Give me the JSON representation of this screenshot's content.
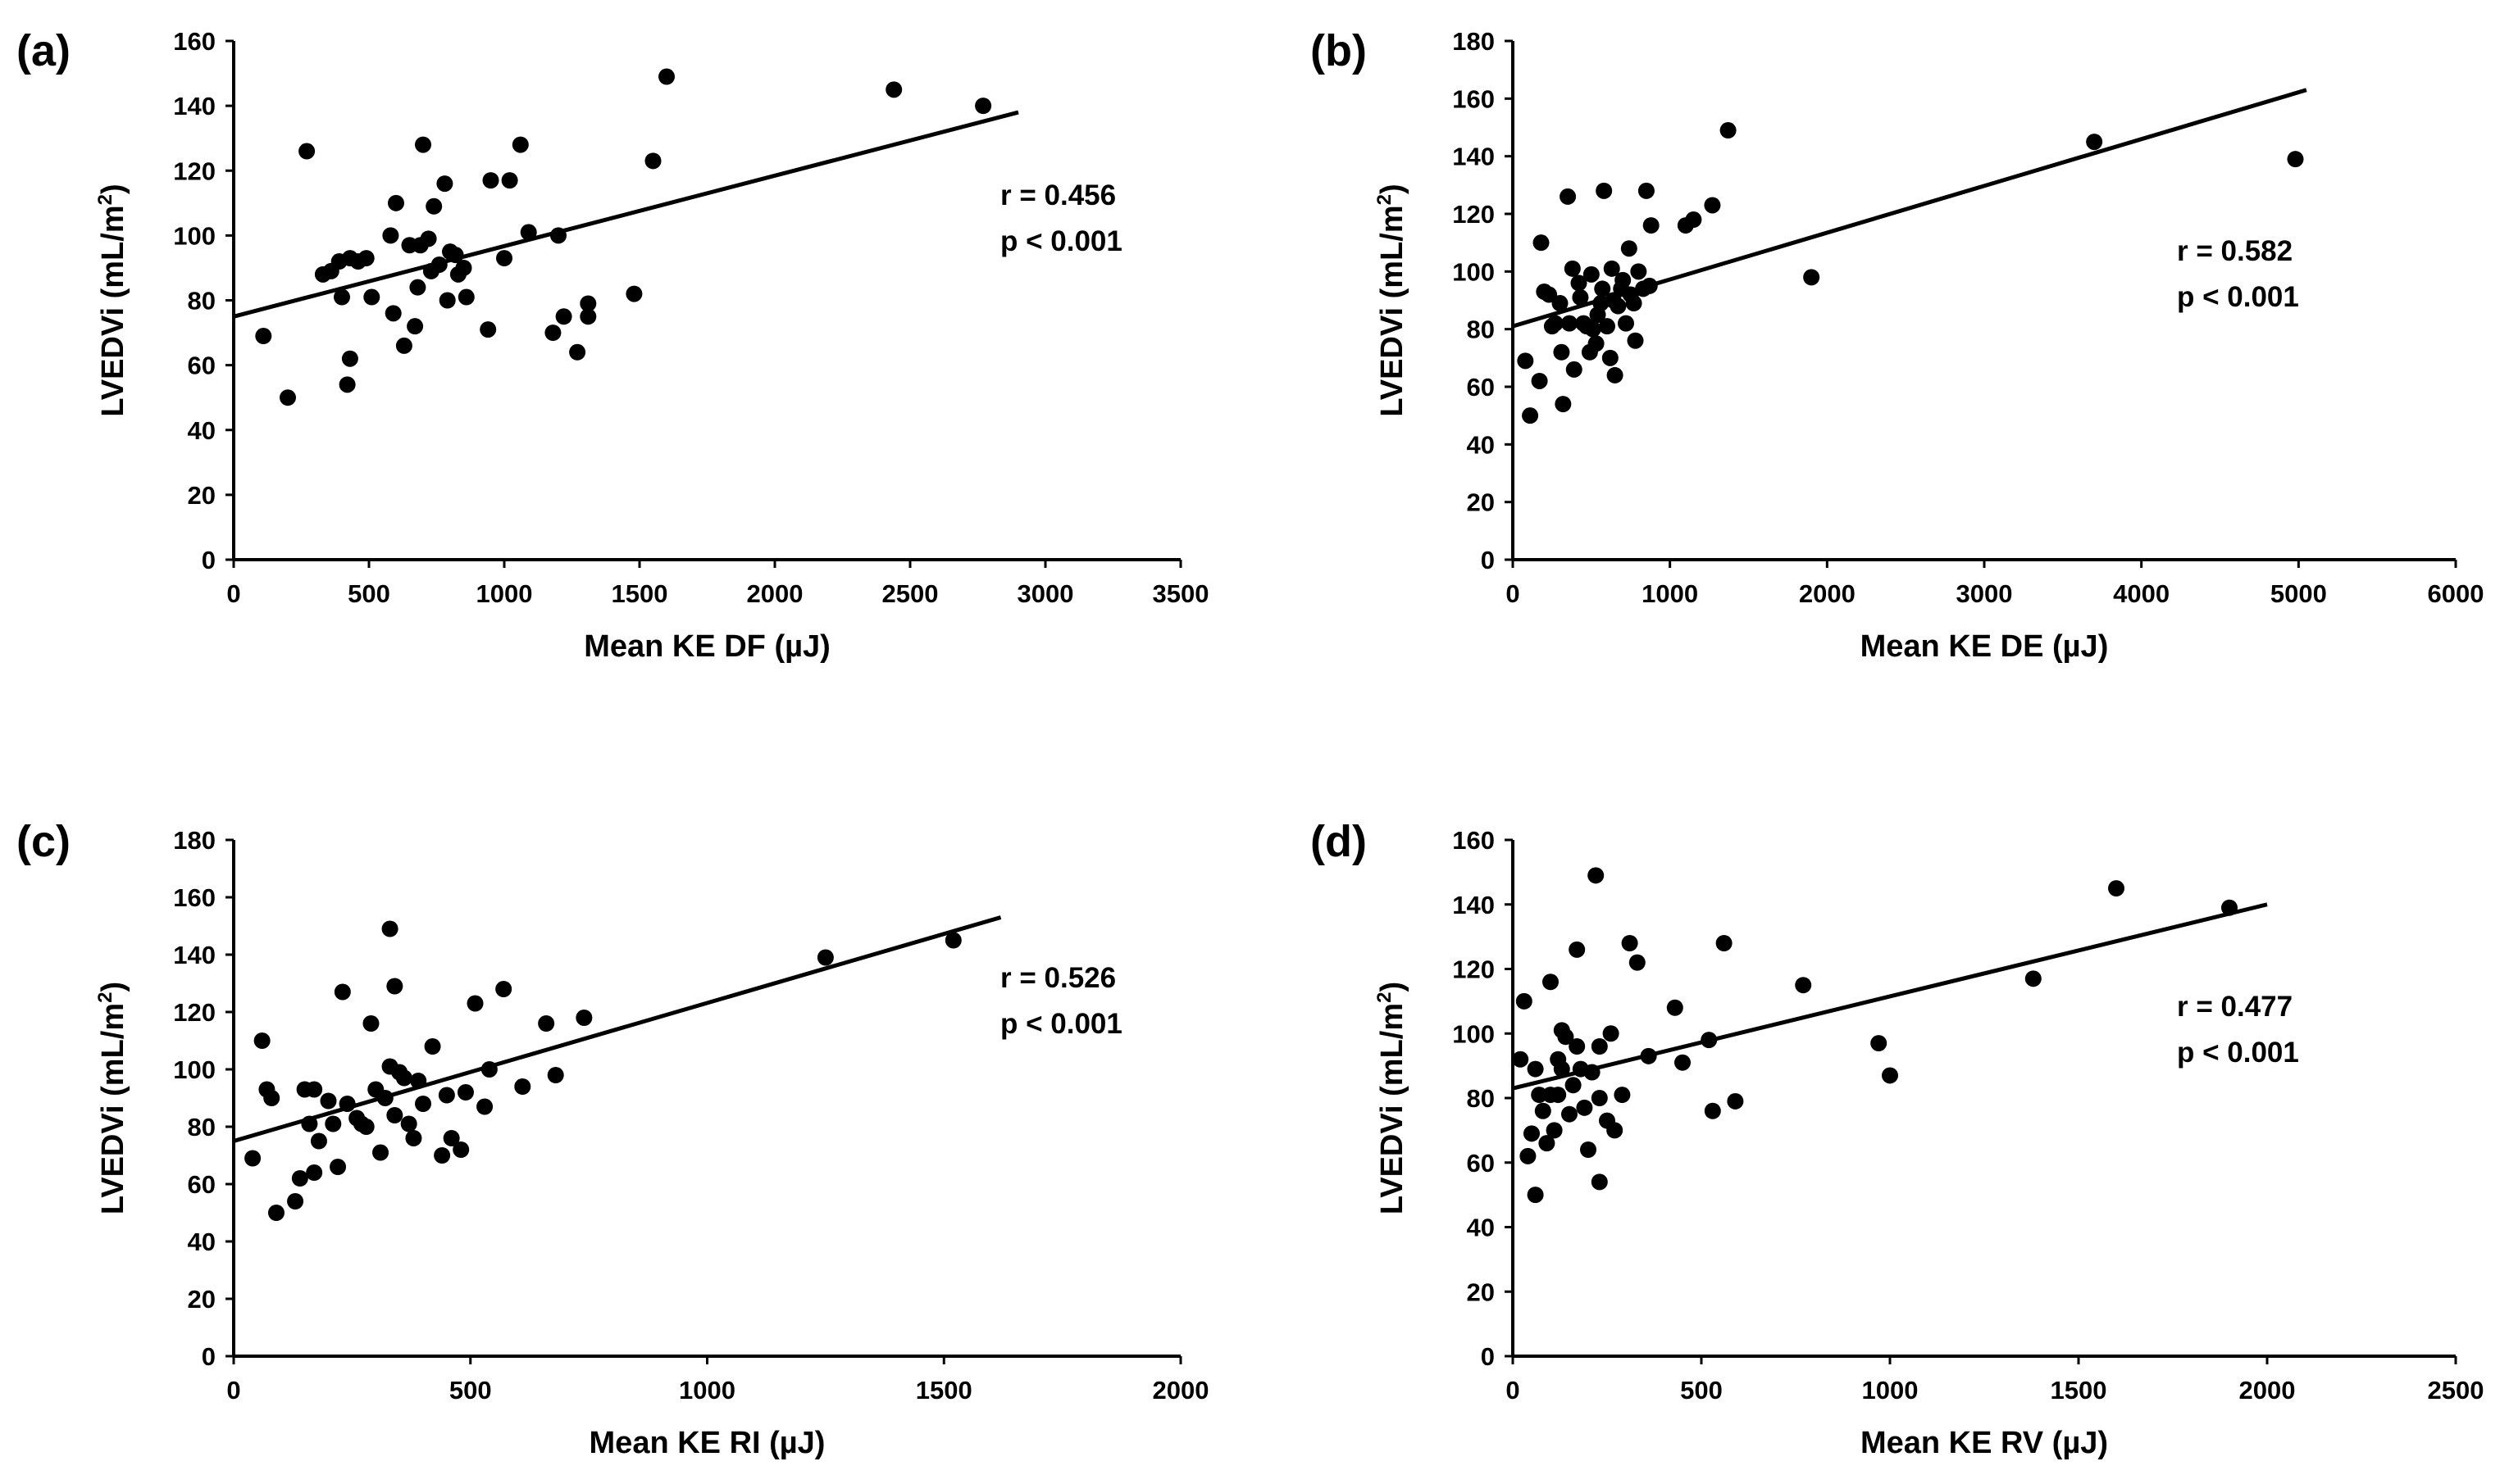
{
  "colors": {
    "marker": "#000000",
    "axis": "#000000",
    "background": "#ffffff"
  },
  "chart_data": [
    {
      "type": "scatter",
      "panel_label": "(a)",
      "xlabel": "Mean KE DF (µJ)",
      "ylabel_main": "LVEDVi (mL/m",
      "ylabel_sup": "2",
      "ylabel_end": ")",
      "xlim": [
        0,
        3500
      ],
      "ylim": [
        0,
        160
      ],
      "xticks": [
        0,
        500,
        1000,
        1500,
        2000,
        2500,
        3000,
        3500
      ],
      "yticks": [
        0,
        20,
        40,
        60,
        80,
        100,
        120,
        140,
        160
      ],
      "stats": {
        "r": "r = 0.456",
        "p": "p < 0.001"
      },
      "trendline": {
        "x1": 0,
        "y1": 75,
        "x2": 2900,
        "y2": 138
      },
      "points": [
        [
          110,
          69
        ],
        [
          200,
          50
        ],
        [
          270,
          126
        ],
        [
          330,
          88
        ],
        [
          360,
          89
        ],
        [
          400,
          81
        ],
        [
          390,
          92
        ],
        [
          420,
          54
        ],
        [
          430,
          62
        ],
        [
          430,
          93
        ],
        [
          460,
          92
        ],
        [
          490,
          93
        ],
        [
          510,
          81
        ],
        [
          580,
          100
        ],
        [
          590,
          76
        ],
        [
          600,
          110
        ],
        [
          630,
          66
        ],
        [
          650,
          97
        ],
        [
          670,
          72
        ],
        [
          680,
          84
        ],
        [
          690,
          97
        ],
        [
          700,
          128
        ],
        [
          720,
          99
        ],
        [
          730,
          89
        ],
        [
          740,
          109
        ],
        [
          760,
          91
        ],
        [
          780,
          116
        ],
        [
          790,
          80
        ],
        [
          800,
          95
        ],
        [
          820,
          94
        ],
        [
          830,
          88
        ],
        [
          850,
          90
        ],
        [
          860,
          81
        ],
        [
          940,
          71
        ],
        [
          950,
          117
        ],
        [
          1000,
          93
        ],
        [
          1020,
          117
        ],
        [
          1060,
          128
        ],
        [
          1090,
          101
        ],
        [
          1180,
          70
        ],
        [
          1200,
          100
        ],
        [
          1220,
          75
        ],
        [
          1270,
          64
        ],
        [
          1310,
          79
        ],
        [
          1310,
          75
        ],
        [
          1480,
          82
        ],
        [
          1550,
          123
        ],
        [
          1600,
          149
        ],
        [
          2440,
          145
        ],
        [
          2770,
          140
        ]
      ]
    },
    {
      "type": "scatter",
      "panel_label": "(b)",
      "xlabel": "Mean KE DE (µJ)",
      "ylabel_main": "LVEDVi (mL/m",
      "ylabel_sup": "2",
      "ylabel_end": ")",
      "xlim": [
        0,
        6000
      ],
      "ylim": [
        0,
        180
      ],
      "xticks": [
        0,
        1000,
        2000,
        3000,
        4000,
        5000,
        6000
      ],
      "yticks": [
        0,
        20,
        40,
        60,
        80,
        100,
        120,
        140,
        160,
        180
      ],
      "stats": {
        "r": "r = 0.582",
        "p": "p < 0.001"
      },
      "trendline": {
        "x1": 0,
        "y1": 81,
        "x2": 5050,
        "y2": 163
      },
      "points": [
        [
          80,
          69
        ],
        [
          110,
          50
        ],
        [
          170,
          62
        ],
        [
          180,
          110
        ],
        [
          200,
          93
        ],
        [
          230,
          92
        ],
        [
          250,
          81
        ],
        [
          270,
          82
        ],
        [
          300,
          89
        ],
        [
          310,
          72
        ],
        [
          320,
          54
        ],
        [
          350,
          126
        ],
        [
          360,
          82
        ],
        [
          380,
          101
        ],
        [
          390,
          66
        ],
        [
          420,
          96
        ],
        [
          430,
          91
        ],
        [
          450,
          82
        ],
        [
          470,
          81
        ],
        [
          490,
          72
        ],
        [
          500,
          99
        ],
        [
          510,
          80
        ],
        [
          530,
          75
        ],
        [
          540,
          85
        ],
        [
          560,
          89
        ],
        [
          570,
          94
        ],
        [
          580,
          128
        ],
        [
          600,
          81
        ],
        [
          620,
          70
        ],
        [
          630,
          101
        ],
        [
          640,
          90
        ],
        [
          650,
          64
        ],
        [
          670,
          88
        ],
        [
          690,
          94
        ],
        [
          700,
          97
        ],
        [
          720,
          82
        ],
        [
          740,
          108
        ],
        [
          750,
          92
        ],
        [
          770,
          89
        ],
        [
          780,
          76
        ],
        [
          800,
          100
        ],
        [
          830,
          94
        ],
        [
          850,
          128
        ],
        [
          870,
          95
        ],
        [
          880,
          116
        ],
        [
          1100,
          116
        ],
        [
          1150,
          118
        ],
        [
          1270,
          123
        ],
        [
          1370,
          149
        ],
        [
          1900,
          98
        ],
        [
          3700,
          145
        ],
        [
          4980,
          139
        ]
      ]
    },
    {
      "type": "scatter",
      "panel_label": "(c)",
      "xlabel": "Mean KE RI (µJ)",
      "ylabel_main": "LVEDVi (mL/m",
      "ylabel_sup": "2",
      "ylabel_end": ")",
      "xlim": [
        0,
        2000
      ],
      "ylim": [
        0,
        180
      ],
      "xticks": [
        0,
        500,
        1000,
        1500,
        2000
      ],
      "yticks": [
        0,
        20,
        40,
        60,
        80,
        100,
        120,
        140,
        160,
        180
      ],
      "stats": {
        "r": "r = 0.526",
        "p": "p < 0.001"
      },
      "trendline": {
        "x1": 0,
        "y1": 75,
        "x2": 1620,
        "y2": 153
      },
      "points": [
        [
          40,
          69
        ],
        [
          60,
          110
        ],
        [
          70,
          93
        ],
        [
          80,
          90
        ],
        [
          90,
          50
        ],
        [
          130,
          54
        ],
        [
          140,
          62
        ],
        [
          150,
          93
        ],
        [
          160,
          81
        ],
        [
          170,
          64
        ],
        [
          170,
          93
        ],
        [
          180,
          75
        ],
        [
          200,
          89
        ],
        [
          210,
          81
        ],
        [
          220,
          66
        ],
        [
          230,
          127
        ],
        [
          240,
          88
        ],
        [
          260,
          83
        ],
        [
          270,
          81
        ],
        [
          280,
          80
        ],
        [
          290,
          116
        ],
        [
          300,
          93
        ],
        [
          310,
          71
        ],
        [
          320,
          90
        ],
        [
          330,
          101
        ],
        [
          330,
          149
        ],
        [
          340,
          84
        ],
        [
          340,
          129
        ],
        [
          350,
          99
        ],
        [
          360,
          97
        ],
        [
          370,
          81
        ],
        [
          380,
          76
        ],
        [
          390,
          96
        ],
        [
          400,
          88
        ],
        [
          420,
          108
        ],
        [
          440,
          70
        ],
        [
          450,
          91
        ],
        [
          460,
          76
        ],
        [
          480,
          72
        ],
        [
          490,
          92
        ],
        [
          510,
          123
        ],
        [
          530,
          87
        ],
        [
          540,
          100
        ],
        [
          570,
          128
        ],
        [
          610,
          94
        ],
        [
          660,
          116
        ],
        [
          680,
          98
        ],
        [
          740,
          118
        ],
        [
          1250,
          139
        ],
        [
          1520,
          145
        ]
      ]
    },
    {
      "type": "scatter",
      "panel_label": "(d)",
      "xlabel": "Mean KE RV (µJ)",
      "ylabel_main": "LVEDVi (mL/m",
      "ylabel_sup": "2",
      "ylabel_end": ")",
      "xlim": [
        0,
        2500
      ],
      "ylim": [
        0,
        160
      ],
      "xticks": [
        0,
        500,
        1000,
        1500,
        2000,
        2500
      ],
      "yticks": [
        0,
        20,
        40,
        60,
        80,
        100,
        120,
        140,
        160
      ],
      "stats": {
        "r": "r = 0.477",
        "p": "p < 0.001"
      },
      "trendline": {
        "x1": 0,
        "y1": 83,
        "x2": 2000,
        "y2": 140
      },
      "points": [
        [
          20,
          92
        ],
        [
          30,
          110
        ],
        [
          40,
          62
        ],
        [
          50,
          69
        ],
        [
          60,
          89
        ],
        [
          60,
          50
        ],
        [
          70,
          81
        ],
        [
          80,
          76
        ],
        [
          90,
          66
        ],
        [
          100,
          116
        ],
        [
          100,
          81
        ],
        [
          110,
          70
        ],
        [
          120,
          92
        ],
        [
          120,
          81
        ],
        [
          130,
          101
        ],
        [
          130,
          89
        ],
        [
          140,
          99
        ],
        [
          150,
          75
        ],
        [
          160,
          84
        ],
        [
          170,
          126
        ],
        [
          170,
          96
        ],
        [
          180,
          89
        ],
        [
          190,
          77
        ],
        [
          200,
          64
        ],
        [
          210,
          88
        ],
        [
          220,
          149
        ],
        [
          230,
          96
        ],
        [
          230,
          80
        ],
        [
          230,
          54
        ],
        [
          250,
          73
        ],
        [
          260,
          100
        ],
        [
          270,
          70
        ],
        [
          290,
          81
        ],
        [
          310,
          128
        ],
        [
          330,
          122
        ],
        [
          360,
          93
        ],
        [
          430,
          108
        ],
        [
          450,
          91
        ],
        [
          520,
          98
        ],
        [
          530,
          76
        ],
        [
          560,
          128
        ],
        [
          590,
          79
        ],
        [
          770,
          115
        ],
        [
          970,
          97
        ],
        [
          1000,
          87
        ],
        [
          1380,
          117
        ],
        [
          1600,
          145
        ],
        [
          1900,
          139
        ]
      ]
    }
  ]
}
